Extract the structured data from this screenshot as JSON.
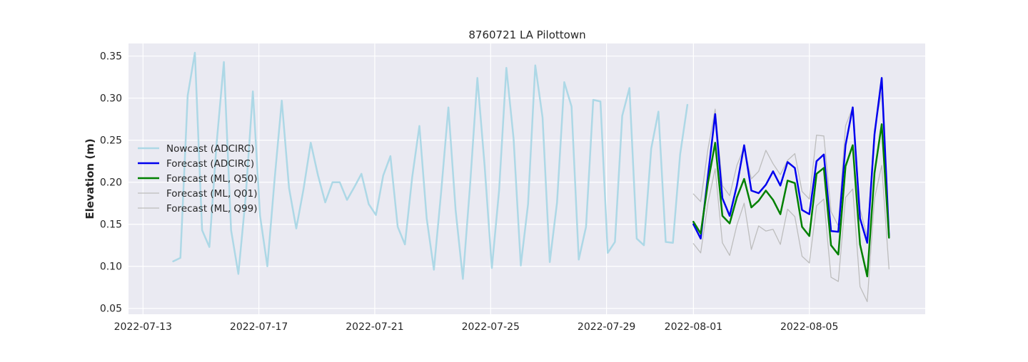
{
  "chart_data": {
    "type": "line",
    "title": "8760721 LA Pilottown",
    "xlabel": "",
    "ylabel": "Elevation (m)",
    "x_type": "date",
    "xlim": [
      "2022-07-12T12:00",
      "2022-08-09T00:00"
    ],
    "ylim": [
      0.043,
      0.365
    ],
    "x_ticks": [
      "2022-07-13",
      "2022-07-17",
      "2022-07-21",
      "2022-07-25",
      "2022-07-29",
      "2022-08-01",
      "2022-08-05"
    ],
    "y_ticks": [
      0.05,
      0.1,
      0.15,
      0.2,
      0.25,
      0.3,
      0.35
    ],
    "y_tick_labels": [
      "0.05",
      "0.10",
      "0.15",
      "0.20",
      "0.25",
      "0.30",
      "0.35"
    ],
    "grid": true,
    "legend_position": "center-left",
    "background": "#EAEAF2",
    "series": [
      {
        "name": "Nowcast (ADCIRC)",
        "color": "#ADD8E6",
        "width": 2.5,
        "x": [
          "2022-07-14T01:00",
          "2022-07-14T07:00",
          "2022-07-14T13:00",
          "2022-07-14T19:00",
          "2022-07-15T01:00",
          "2022-07-15T07:00",
          "2022-07-15T13:00",
          "2022-07-15T19:00",
          "2022-07-16T01:00",
          "2022-07-16T07:00",
          "2022-07-16T13:00",
          "2022-07-16T19:00",
          "2022-07-17T01:00",
          "2022-07-17T07:00",
          "2022-07-17T13:00",
          "2022-07-17T19:00",
          "2022-07-18T01:00",
          "2022-07-18T07:00",
          "2022-07-18T13:00",
          "2022-07-18T19:00",
          "2022-07-19T01:00",
          "2022-07-19T07:00",
          "2022-07-19T13:00",
          "2022-07-19T19:00",
          "2022-07-20T01:00",
          "2022-07-20T07:00",
          "2022-07-20T13:00",
          "2022-07-20T19:00",
          "2022-07-21T01:00",
          "2022-07-21T07:00",
          "2022-07-21T13:00",
          "2022-07-21T19:00",
          "2022-07-22T01:00",
          "2022-07-22T07:00",
          "2022-07-22T13:00",
          "2022-07-22T19:00",
          "2022-07-23T01:00",
          "2022-07-23T07:00",
          "2022-07-23T13:00",
          "2022-07-23T19:00",
          "2022-07-24T01:00",
          "2022-07-24T07:00",
          "2022-07-24T13:00",
          "2022-07-24T19:00",
          "2022-07-25T01:00",
          "2022-07-25T07:00",
          "2022-07-25T13:00",
          "2022-07-25T19:00",
          "2022-07-26T01:00",
          "2022-07-26T07:00",
          "2022-07-26T13:00",
          "2022-07-26T19:00",
          "2022-07-27T01:00",
          "2022-07-27T07:00",
          "2022-07-27T13:00",
          "2022-07-27T19:00",
          "2022-07-28T01:00",
          "2022-07-28T07:00",
          "2022-07-28T13:00",
          "2022-07-28T19:00",
          "2022-07-29T01:00",
          "2022-07-29T07:00",
          "2022-07-29T13:00",
          "2022-07-29T19:00",
          "2022-07-30T01:00",
          "2022-07-30T07:00",
          "2022-07-30T13:00",
          "2022-07-30T19:00",
          "2022-07-31T01:00",
          "2022-07-31T07:00",
          "2022-07-31T13:00",
          "2022-07-31T19:00"
        ],
        "y": [
          0.106,
          0.11,
          0.303,
          0.354,
          0.143,
          0.123,
          0.246,
          0.343,
          0.143,
          0.091,
          0.181,
          0.308,
          0.16,
          0.1,
          0.203,
          0.297,
          0.193,
          0.145,
          0.192,
          0.247,
          0.208,
          0.176,
          0.2,
          0.2,
          0.179,
          0.194,
          0.21,
          0.174,
          0.161,
          0.208,
          0.231,
          0.147,
          0.126,
          0.206,
          0.267,
          0.157,
          0.096,
          0.188,
          0.289,
          0.167,
          0.085,
          0.197,
          0.324,
          0.22,
          0.098,
          0.19,
          0.336,
          0.252,
          0.101,
          0.174,
          0.339,
          0.277,
          0.105,
          0.176,
          0.319,
          0.29,
          0.108,
          0.147,
          0.298,
          0.296,
          0.116,
          0.129,
          0.279,
          0.312,
          0.133,
          0.125,
          0.24,
          0.284,
          0.129,
          0.128,
          0.233,
          0.292
        ]
      },
      {
        "name": "Forecast (ADCIRC)",
        "color": "#0000EE",
        "width": 2.5,
        "x": [
          "2022-08-01T00:00",
          "2022-08-01T06:00",
          "2022-08-01T12:00",
          "2022-08-01T18:00",
          "2022-08-02T00:00",
          "2022-08-02T06:00",
          "2022-08-02T12:00",
          "2022-08-02T18:00",
          "2022-08-03T00:00",
          "2022-08-03T06:00",
          "2022-08-03T12:00",
          "2022-08-03T18:00",
          "2022-08-04T00:00",
          "2022-08-04T06:00",
          "2022-08-04T12:00",
          "2022-08-04T18:00",
          "2022-08-05T00:00",
          "2022-08-05T06:00",
          "2022-08-05T12:00",
          "2022-08-05T18:00",
          "2022-08-06T00:00",
          "2022-08-06T06:00",
          "2022-08-06T12:00",
          "2022-08-06T18:00",
          "2022-08-07T00:00",
          "2022-08-07T06:00",
          "2022-08-07T12:00",
          "2022-08-07T18:00"
        ],
        "y": [
          0.15,
          0.133,
          0.207,
          0.281,
          0.181,
          0.16,
          0.196,
          0.244,
          0.19,
          0.187,
          0.197,
          0.213,
          0.196,
          0.224,
          0.217,
          0.167,
          0.162,
          0.225,
          0.233,
          0.142,
          0.141,
          0.244,
          0.289,
          0.157,
          0.128,
          0.257,
          0.324,
          0.135
        ]
      },
      {
        "name": "Forecast (ML, Q50)",
        "color": "#008000",
        "width": 2.5,
        "x": [
          "2022-08-01T00:00",
          "2022-08-01T06:00",
          "2022-08-01T12:00",
          "2022-08-01T18:00",
          "2022-08-02T00:00",
          "2022-08-02T06:00",
          "2022-08-02T12:00",
          "2022-08-02T18:00",
          "2022-08-03T00:00",
          "2022-08-03T06:00",
          "2022-08-03T12:00",
          "2022-08-03T18:00",
          "2022-08-04T00:00",
          "2022-08-04T06:00",
          "2022-08-04T12:00",
          "2022-08-04T18:00",
          "2022-08-05T00:00",
          "2022-08-05T06:00",
          "2022-08-05T12:00",
          "2022-08-05T18:00",
          "2022-08-06T00:00",
          "2022-08-06T06:00",
          "2022-08-06T12:00",
          "2022-08-06T18:00",
          "2022-08-07T00:00",
          "2022-08-07T06:00",
          "2022-08-07T12:00",
          "2022-08-07T18:00"
        ],
        "y": [
          0.153,
          0.139,
          0.199,
          0.247,
          0.16,
          0.151,
          0.182,
          0.204,
          0.17,
          0.178,
          0.19,
          0.179,
          0.162,
          0.202,
          0.199,
          0.147,
          0.136,
          0.21,
          0.217,
          0.125,
          0.114,
          0.219,
          0.244,
          0.126,
          0.088,
          0.211,
          0.269,
          0.134
        ]
      },
      {
        "name": "Forecast (ML, Q01)",
        "color": "#BDBDBD",
        "width": 1.3,
        "x": [
          "2022-08-01T00:00",
          "2022-08-01T06:00",
          "2022-08-01T12:00",
          "2022-08-01T18:00",
          "2022-08-02T00:00",
          "2022-08-02T06:00",
          "2022-08-02T12:00",
          "2022-08-02T18:00",
          "2022-08-03T00:00",
          "2022-08-03T06:00",
          "2022-08-03T12:00",
          "2022-08-03T18:00",
          "2022-08-04T00:00",
          "2022-08-04T06:00",
          "2022-08-04T12:00",
          "2022-08-04T18:00",
          "2022-08-05T00:00",
          "2022-08-05T06:00",
          "2022-08-05T12:00",
          "2022-08-05T18:00",
          "2022-08-06T00:00",
          "2022-08-06T06:00",
          "2022-08-06T12:00",
          "2022-08-06T18:00",
          "2022-08-07T00:00",
          "2022-08-07T06:00",
          "2022-08-07T12:00",
          "2022-08-07T18:00"
        ],
        "y": [
          0.127,
          0.116,
          0.175,
          0.216,
          0.128,
          0.113,
          0.149,
          0.175,
          0.12,
          0.148,
          0.142,
          0.144,
          0.126,
          0.168,
          0.159,
          0.112,
          0.104,
          0.172,
          0.18,
          0.087,
          0.082,
          0.182,
          0.192,
          0.076,
          0.058,
          0.181,
          0.22,
          0.097
        ]
      },
      {
        "name": "Forecast (ML, Q99)",
        "color": "#BDBDBD",
        "width": 1.3,
        "x": [
          "2022-08-01T00:00",
          "2022-08-01T06:00",
          "2022-08-01T12:00",
          "2022-08-01T18:00",
          "2022-08-02T00:00",
          "2022-08-02T06:00",
          "2022-08-02T12:00",
          "2022-08-02T18:00",
          "2022-08-03T00:00",
          "2022-08-03T06:00",
          "2022-08-03T12:00",
          "2022-08-03T18:00",
          "2022-08-04T00:00",
          "2022-08-04T06:00",
          "2022-08-04T12:00",
          "2022-08-04T18:00",
          "2022-08-05T00:00",
          "2022-08-05T06:00",
          "2022-08-05T12:00",
          "2022-08-05T18:00",
          "2022-08-06T00:00",
          "2022-08-06T06:00",
          "2022-08-06T12:00",
          "2022-08-06T18:00",
          "2022-08-07T00:00",
          "2022-08-07T06:00",
          "2022-08-07T12:00",
          "2022-08-07T18:00"
        ],
        "y": [
          0.186,
          0.177,
          0.239,
          0.287,
          0.196,
          0.184,
          0.22,
          0.241,
          0.204,
          0.213,
          0.238,
          0.222,
          0.209,
          0.226,
          0.234,
          0.189,
          0.18,
          0.256,
          0.255,
          0.165,
          0.148,
          0.267,
          0.289,
          0.168,
          0.135,
          0.263,
          0.307,
          0.142
        ]
      }
    ]
  }
}
